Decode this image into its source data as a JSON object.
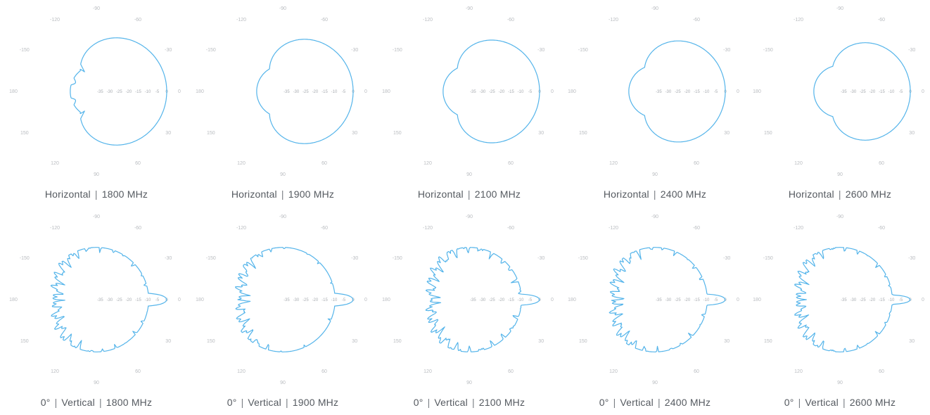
{
  "chart_data": [
    {
      "type": "polar",
      "title": "Horizontal | 1800 MHz",
      "caption_parts": [
        "Horizontal",
        "1800 MHz"
      ],
      "pattern": "horizontal",
      "beamwidth_deg": 70,
      "back_lobe_db": -22,
      "angle_ticks": [
        "0",
        "30",
        "60",
        "90",
        "120",
        "150",
        "180",
        "-150",
        "-120",
        "-90",
        "-60",
        "-30"
      ],
      "radial_ticks": [
        "0",
        "-5",
        "-10",
        "-15",
        "-20",
        "-25",
        "-30",
        "-35"
      ],
      "line_color": "#54b4ea"
    },
    {
      "type": "polar",
      "title": "Horizontal | 1900 MHz",
      "caption_parts": [
        "Horizontal",
        "1900 MHz"
      ],
      "pattern": "horizontal",
      "beamwidth_deg": 66,
      "back_lobe_db": -20,
      "angle_ticks": [
        "0",
        "30",
        "60",
        "90",
        "120",
        "150",
        "180",
        "-150",
        "-120",
        "-90",
        "-60",
        "-30"
      ],
      "radial_ticks": [
        "0",
        "-5",
        "-10",
        "-15",
        "-20",
        "-25",
        "-30",
        "-35"
      ],
      "line_color": "#54b4ea"
    },
    {
      "type": "polar",
      "title": "Horizontal | 2100 MHz",
      "caption_parts": [
        "Horizontal",
        "2100 MHz"
      ],
      "pattern": "horizontal",
      "beamwidth_deg": 64,
      "back_lobe_db": -18,
      "angle_ticks": [
        "0",
        "30",
        "60",
        "90",
        "120",
        "150",
        "180",
        "-150",
        "-120",
        "-90",
        "-60",
        "-30"
      ],
      "radial_ticks": [
        "0",
        "-5",
        "-10",
        "-15",
        "-20",
        "-25",
        "-30",
        "-35"
      ],
      "line_color": "#54b4ea"
    },
    {
      "type": "polar",
      "title": "Horizontal | 2400 MHz",
      "caption_parts": [
        "Horizontal",
        "2400 MHz"
      ],
      "pattern": "horizontal",
      "beamwidth_deg": 62,
      "back_lobe_db": -20,
      "angle_ticks": [
        "0",
        "30",
        "60",
        "90",
        "120",
        "150",
        "180",
        "-150",
        "-120",
        "-90",
        "-60",
        "-30"
      ],
      "radial_ticks": [
        "0",
        "-5",
        "-10",
        "-15",
        "-20",
        "-25",
        "-30",
        "-35"
      ],
      "line_color": "#54b4ea"
    },
    {
      "type": "polar",
      "title": "Horizontal | 2600 MHz",
      "caption_parts": [
        "Horizontal",
        "2600 MHz"
      ],
      "pattern": "horizontal",
      "beamwidth_deg": 58,
      "back_lobe_db": -17,
      "angle_ticks": [
        "0",
        "30",
        "60",
        "90",
        "120",
        "150",
        "180",
        "-150",
        "-120",
        "-90",
        "-60",
        "-30"
      ],
      "radial_ticks": [
        "0",
        "-5",
        "-10",
        "-15",
        "-20",
        "-25",
        "-30",
        "-35"
      ],
      "line_color": "#54b4ea"
    },
    {
      "type": "polar",
      "title": "0° | Vertical | 1800 MHz",
      "caption_parts": [
        "0°",
        "Vertical",
        "1800 MHz"
      ],
      "pattern": "vertical",
      "beamwidth_deg": 8,
      "sidelobe_db": -12,
      "angle_ticks": [
        "0",
        "30",
        "60",
        "90",
        "120",
        "150",
        "180",
        "-150",
        "-120",
        "-90",
        "-60",
        "-30"
      ],
      "radial_ticks": [
        "0",
        "-5",
        "-10",
        "-15",
        "-20",
        "-25",
        "-30",
        "-35"
      ],
      "line_color": "#54b4ea"
    },
    {
      "type": "polar",
      "title": "0° | Vertical | 1900 MHz",
      "caption_parts": [
        "0°",
        "Vertical",
        "1900 MHz"
      ],
      "pattern": "vertical",
      "beamwidth_deg": 8,
      "sidelobe_db": -11,
      "angle_ticks": [
        "0",
        "30",
        "60",
        "90",
        "120",
        "150",
        "180",
        "-150",
        "-120",
        "-90",
        "-60",
        "-30"
      ],
      "radial_ticks": [
        "0",
        "-5",
        "-10",
        "-15",
        "-20",
        "-25",
        "-30",
        "-35"
      ],
      "line_color": "#54b4ea"
    },
    {
      "type": "polar",
      "title": "0° | Vertical | 2100 MHz",
      "caption_parts": [
        "0°",
        "Vertical",
        "2100 MHz"
      ],
      "pattern": "vertical",
      "beamwidth_deg": 7,
      "sidelobe_db": -13,
      "angle_ticks": [
        "0",
        "30",
        "60",
        "90",
        "120",
        "150",
        "180",
        "-150",
        "-120",
        "-90",
        "-60",
        "-30"
      ],
      "radial_ticks": [
        "0",
        "-5",
        "-10",
        "-15",
        "-20",
        "-25",
        "-30",
        "-35"
      ],
      "line_color": "#54b4ea"
    },
    {
      "type": "polar",
      "title": "0° | Vertical | 2400 MHz",
      "caption_parts": [
        "0°",
        "Vertical",
        "2400 MHz"
      ],
      "pattern": "vertical",
      "beamwidth_deg": 7,
      "sidelobe_db": -12,
      "angle_ticks": [
        "0",
        "30",
        "60",
        "90",
        "120",
        "150",
        "180",
        "-150",
        "-120",
        "-90",
        "-60",
        "-30"
      ],
      "radial_ticks": [
        "0",
        "-5",
        "-10",
        "-15",
        "-20",
        "-25",
        "-30",
        "-35"
      ],
      "line_color": "#54b4ea"
    },
    {
      "type": "polar",
      "title": "0° | Vertical | 2600 MHz",
      "caption_parts": [
        "0°",
        "Vertical",
        "2600 MHz"
      ],
      "pattern": "vertical",
      "beamwidth_deg": 6,
      "sidelobe_db": -12,
      "angle_ticks": [
        "0",
        "30",
        "60",
        "90",
        "120",
        "150",
        "180",
        "-150",
        "-120",
        "-90",
        "-60",
        "-30"
      ],
      "radial_ticks": [
        "0",
        "-5",
        "-10",
        "-15",
        "-20",
        "-25",
        "-30",
        "-35"
      ],
      "line_color": "#54b4ea"
    }
  ]
}
